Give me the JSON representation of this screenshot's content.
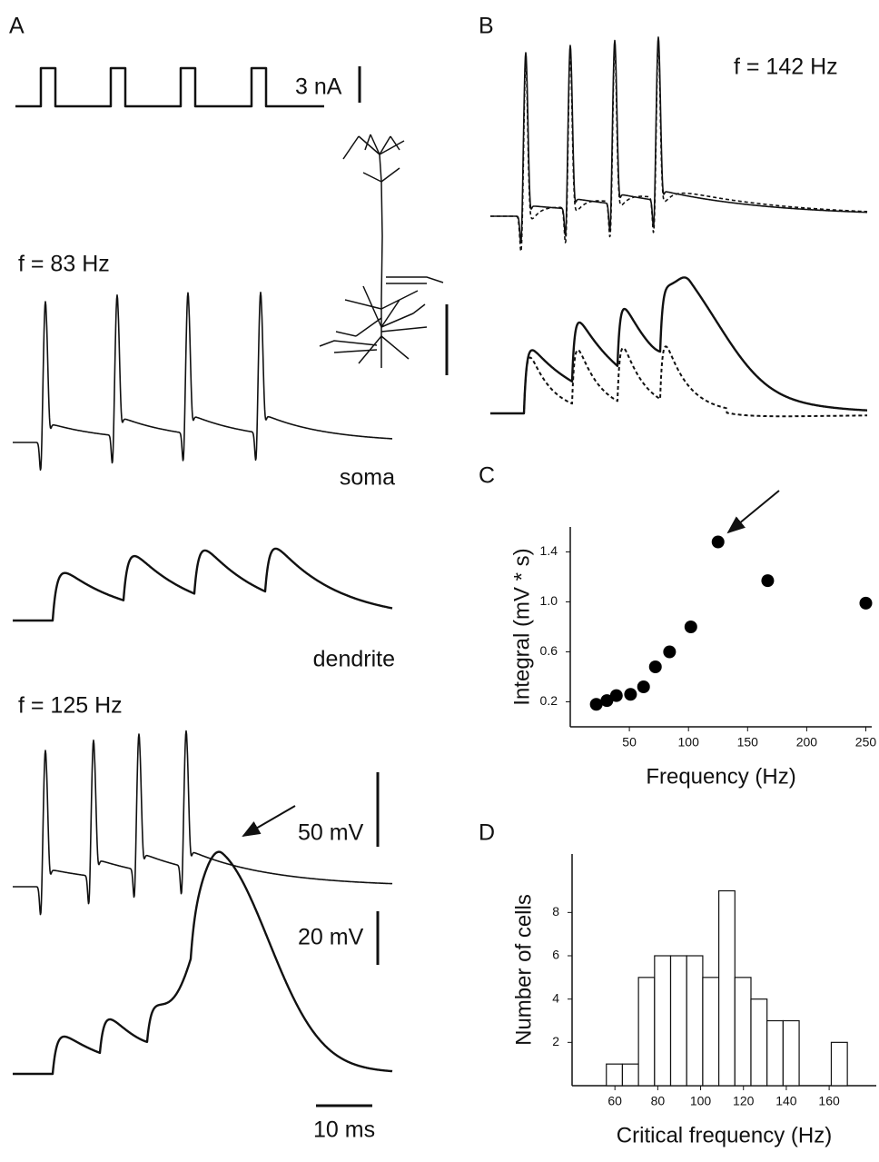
{
  "panels": {
    "a": {
      "label": "A",
      "stimulus_scale": "3 nA",
      "low_freq": "f = 83 Hz",
      "soma": "soma",
      "dendrite": "dendrite",
      "high_freq": "f = 125 Hz",
      "scale_50": "50 mV",
      "scale_20": "20 mV",
      "time_scale": "10 ms"
    },
    "b": {
      "label": "B",
      "freq": "f = 142 Hz"
    },
    "c": {
      "label": "C"
    },
    "d": {
      "label": "D"
    }
  },
  "chart_data": [
    {
      "type": "scatter",
      "x_label": "Frequency (Hz)",
      "y_label": "Integral (mV * s)",
      "x": [
        22,
        31,
        39,
        51,
        62,
        72,
        84,
        102,
        125,
        167,
        250
      ],
      "values": [
        0.18,
        0.21,
        0.25,
        0.26,
        0.32,
        0.48,
        0.6,
        0.8,
        1.48,
        1.17,
        0.99
      ],
      "color": "#000000",
      "xlim": [
        0,
        255
      ],
      "xticks": [
        50,
        100,
        150,
        200,
        250
      ],
      "ylim": [
        0,
        1.6
      ],
      "yticks": [
        0.2,
        0.6,
        {
          "value": 1,
          "label": "1.0"
        },
        1.4
      ]
    },
    {
      "type": "histogram",
      "x_label": "Critical frequency (Hz)",
      "y_label": "Number of cells",
      "bins": [
        56,
        63.5,
        71,
        78.5,
        86,
        93.5,
        101,
        108.5,
        116,
        123.5,
        131,
        138.5,
        146,
        153.5,
        161,
        168.5
      ],
      "values": [
        1,
        1,
        5,
        6,
        6,
        6,
        5,
        9,
        5,
        4,
        3,
        3,
        0,
        0,
        2
      ],
      "color": "#ffffff",
      "xlim": [
        40,
        182
      ],
      "xticks": [
        60,
        80,
        100,
        120,
        140,
        160
      ],
      "ylim": [
        0,
        10.7
      ],
      "yticks": [
        2,
        4,
        6,
        8
      ]
    }
  ]
}
